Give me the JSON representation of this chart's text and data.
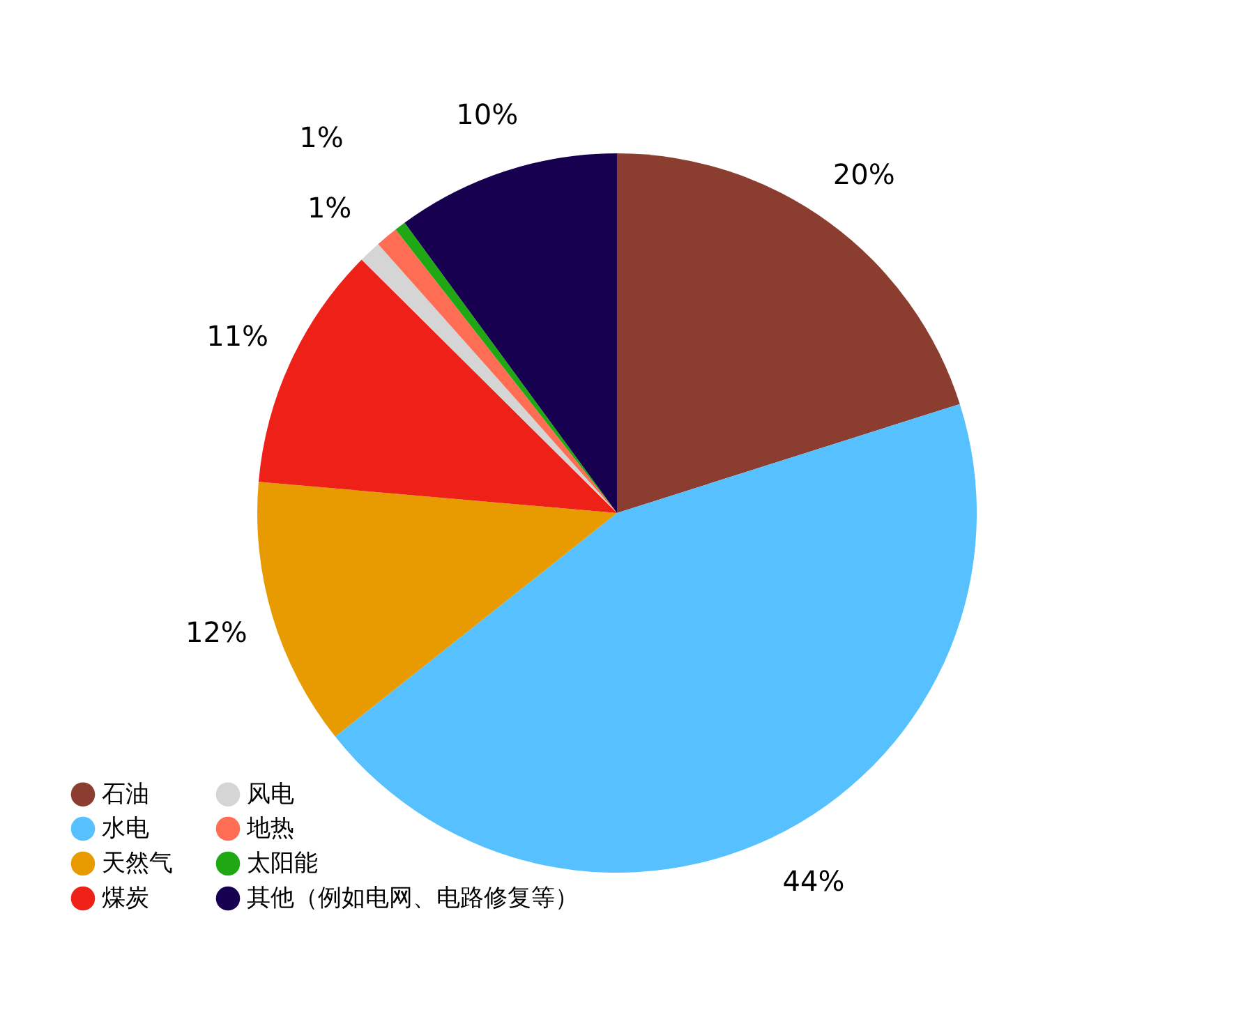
{
  "chart_data": {
    "type": "pie",
    "categories": [
      "石油",
      "水电",
      "天然气",
      "煤炭",
      "风电",
      "地热",
      "太阳能",
      "其他（例如电网、电路修复等）"
    ],
    "values": [
      20,
      44,
      12,
      11,
      1,
      1,
      0.5,
      10
    ],
    "colors": [
      "#8b3e2f",
      "#56c1fe",
      "#e89b00",
      "#ee2119",
      "#d5d5d5",
      "#ff6d55",
      "#1fa814",
      "#180051"
    ],
    "value_labels": [
      "20%",
      "44%",
      "12%",
      "11%",
      "1%",
      "1%",
      null,
      "10%"
    ],
    "legend": "bottom left"
  }
}
